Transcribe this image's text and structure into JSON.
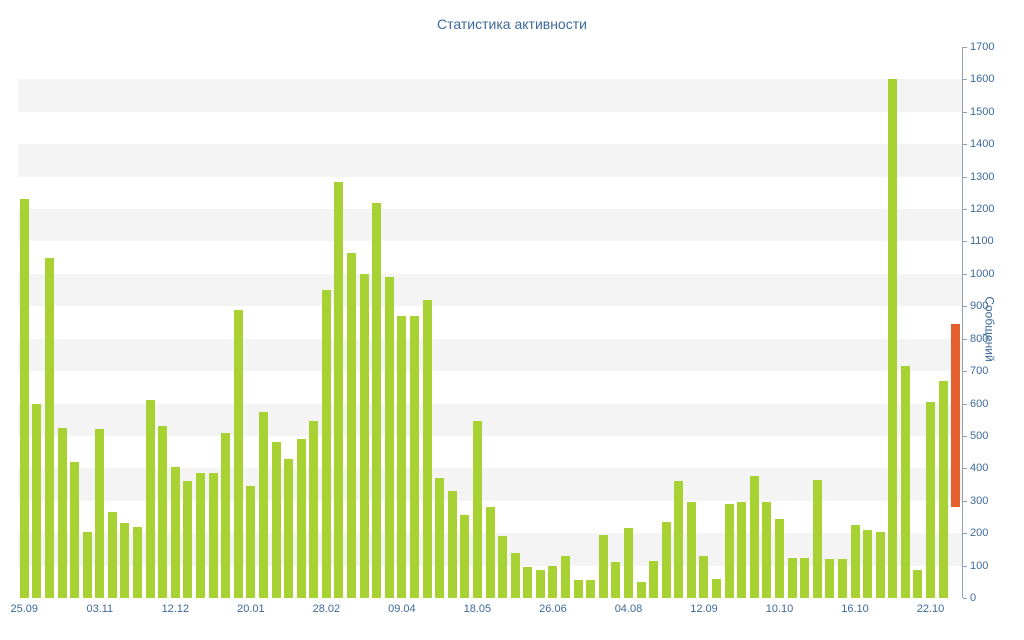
{
  "chart_data": {
    "type": "bar",
    "title": "Статистика активности",
    "ylabel": "Сообщений",
    "xlabel": "",
    "ylim": [
      0,
      1700
    ],
    "ytick_step": 100,
    "grid": "striped-bands",
    "legend": "none",
    "x_labels": [
      "25.09",
      "03.11",
      "12.12",
      "20.01",
      "28.02",
      "09.04",
      "18.05",
      "26.06",
      "04.08",
      "12.09",
      "10.10",
      "16.10",
      "22.10"
    ],
    "x_label_indices": [
      0,
      6,
      12,
      18,
      24,
      30,
      36,
      42,
      48,
      54,
      60,
      66,
      72
    ],
    "values": [
      1230,
      600,
      1050,
      525,
      420,
      205,
      520,
      265,
      230,
      220,
      610,
      530,
      405,
      360,
      385,
      385,
      510,
      890,
      345,
      575,
      480,
      430,
      490,
      545,
      950,
      1285,
      1065,
      1000,
      1220,
      990,
      870,
      870,
      920,
      370,
      330,
      255,
      545,
      280,
      190,
      140,
      95,
      85,
      100,
      130,
      55,
      55,
      195,
      110,
      215,
      50,
      115,
      235,
      360,
      295,
      130,
      60,
      290,
      295,
      375,
      295,
      245,
      125,
      125,
      365,
      120,
      120,
      225,
      210,
      205,
      1600,
      715,
      85,
      605,
      670
    ],
    "current_period_bar": {
      "from": 280,
      "to": 845
    },
    "colors": {
      "bar": "#a8d133",
      "current_bar": "#e45f2b",
      "title_text": "#3d6a99",
      "tick_text": "#3d6a99",
      "axis_line": "#8fa0b0",
      "stripe": "#f4f4f4",
      "background": "#ffffff"
    }
  }
}
